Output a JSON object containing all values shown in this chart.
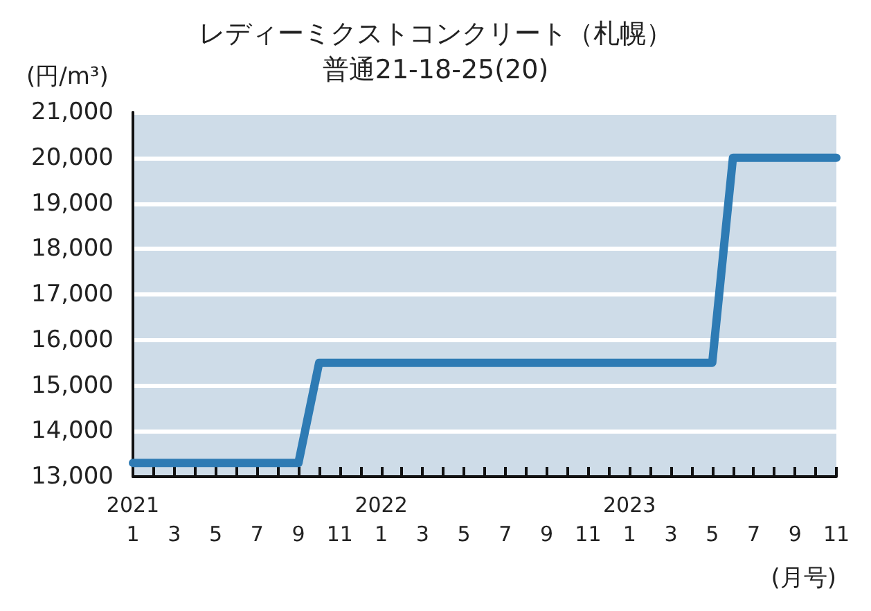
{
  "chart_data": {
    "type": "step",
    "title": "レディーミクストコンクリート（札幌）",
    "subtitle": "普通21-18-25(20)",
    "ylabel": "(円/m³)",
    "xlabel": "(月号)",
    "categories": [
      "2021\n1",
      null,
      "3",
      null,
      "5",
      null,
      "7",
      null,
      "9",
      null,
      "11",
      null,
      "2022\n1",
      null,
      "3",
      null,
      "5",
      null,
      "7",
      null,
      "9",
      null,
      "11",
      null,
      "2023\n1",
      null,
      "3",
      null,
      "5",
      null,
      "7",
      null,
      "9",
      null,
      "11"
    ],
    "series": [
      {
        "color": "#2e7bb4",
        "values": [
          13300,
          13300,
          13300,
          13300,
          13300,
          13300,
          13300,
          13300,
          13300,
          15500,
          15500,
          15500,
          15500,
          15500,
          15500,
          15500,
          15500,
          15500,
          15500,
          15500,
          15500,
          15500,
          15500,
          15500,
          15500,
          15500,
          15500,
          15500,
          15500,
          20000,
          20000,
          20000,
          20000,
          20000,
          20000
        ]
      }
    ],
    "ylim": [
      13000,
      21000
    ],
    "yticks": [
      {
        "value": 13000,
        "label": "13,000"
      },
      {
        "value": 14000,
        "label": "14,000"
      },
      {
        "value": 15000,
        "label": "15,000"
      },
      {
        "value": 16000,
        "label": "16,000"
      },
      {
        "value": 17000,
        "label": "17,000"
      },
      {
        "value": 18000,
        "label": "18,000"
      },
      {
        "value": 19000,
        "label": "19,000"
      },
      {
        "value": 20000,
        "label": "20,000"
      },
      {
        "value": 21000,
        "label": "21,000"
      }
    ],
    "grid": "y",
    "marker": "none",
    "line_style": "solid"
  }
}
